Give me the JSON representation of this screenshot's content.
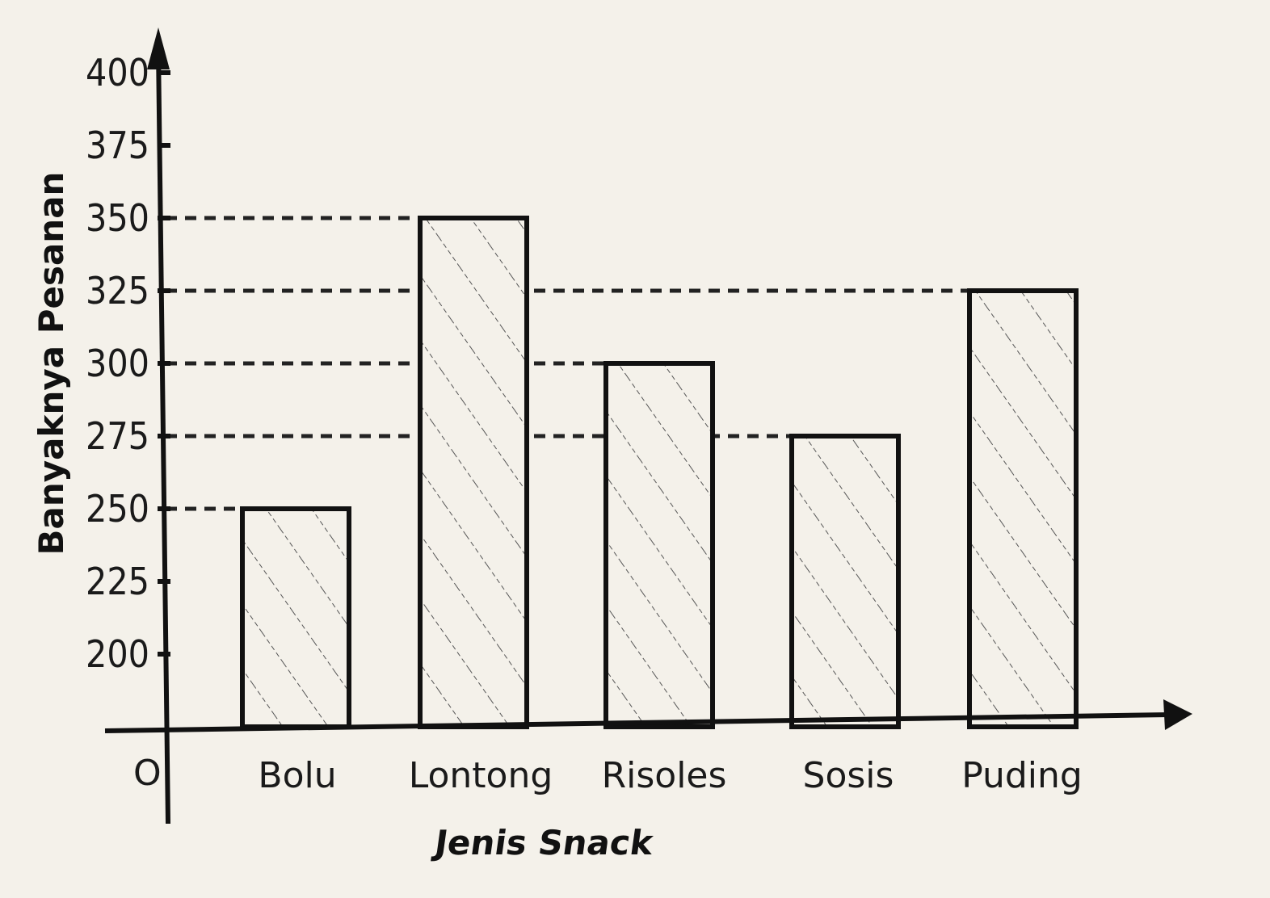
{
  "chart_data": {
    "type": "bar",
    "categories": [
      "Bolu",
      "Lontong",
      "Risoles",
      "Sosis",
      "Puding"
    ],
    "values": [
      250,
      350,
      300,
      275,
      325
    ],
    "xlabel": "Jenis Snack",
    "ylabel": "Banyaknya Pesanan",
    "origin_label": "O",
    "yticks": [
      200,
      225,
      250,
      275,
      300,
      325,
      350,
      375,
      400
    ],
    "ylim": [
      200,
      400
    ],
    "grid": false,
    "guide_lines": "dashed lines from y-axis to top of each bar",
    "bar_fill": "diagonal hatch",
    "colors": {
      "ink": "#111111",
      "paper": "#f4f1ea"
    }
  }
}
